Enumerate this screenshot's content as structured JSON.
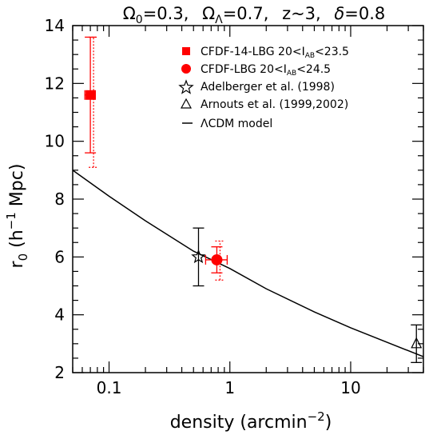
{
  "chart_data": {
    "type": "scatter",
    "title_parts": {
      "omega0_symbol": "Ω",
      "omega0_sub": "0",
      "omega0_value": "=0.3,",
      "omegaL_symbol": "Ω",
      "omegaL_sub": "Λ",
      "omegaL_value": "=0.7,",
      "z_text": "z~3,",
      "delta_symbol": "δ",
      "delta_value": "=0.8"
    },
    "xlabel": "density (arcmin",
    "xlabel_sup": "−2",
    "xlabel_close": ")",
    "ylabel": {
      "r": "r",
      "sub": "0",
      "open": " (h",
      "sup": "−1",
      "close": " Mpc)"
    },
    "x_scale": "log",
    "xlim": [
      0.05,
      40
    ],
    "ylim": [
      2,
      14
    ],
    "x_ticks": [
      {
        "value": 0.1,
        "label": "0.1"
      },
      {
        "value": 1,
        "label": "1"
      },
      {
        "value": 10,
        "label": "10"
      }
    ],
    "y_ticks": [
      {
        "value": 2,
        "label": "2"
      },
      {
        "value": 4,
        "label": "4"
      },
      {
        "value": 6,
        "label": "6"
      },
      {
        "value": 8,
        "label": "8"
      },
      {
        "value": 10,
        "label": "10"
      },
      {
        "value": 12,
        "label": "12"
      },
      {
        "value": 14,
        "label": "14"
      }
    ],
    "series": [
      {
        "name": "CFDF-14-LBG 20<I",
        "name_sub": "AB",
        "name_tail": "<23.5",
        "marker": "square",
        "color": "#ff0000",
        "points": [
          {
            "x": 0.07,
            "y": 11.6,
            "xerr": [
              0.063,
              0.077
            ],
            "yerr": [
              9.6,
              13.6
            ],
            "yerr_dotted": [
              9.1,
              13.6
            ]
          }
        ]
      },
      {
        "name": "CFDF-LBG 20<I",
        "name_sub": "AB",
        "name_tail": "<24.5",
        "marker": "circle",
        "color": "#ff0000",
        "points": [
          {
            "x": 0.78,
            "y": 5.9,
            "xerr": [
              0.63,
              0.95
            ],
            "yerr": [
              5.45,
              6.35
            ],
            "yerr_dotted": [
              5.2,
              6.55
            ]
          }
        ]
      },
      {
        "name": "Adelberger et al. (1998)",
        "marker": "star",
        "color": "#000000",
        "points": [
          {
            "x": 0.55,
            "y": 6.0,
            "yerr": [
              5.0,
              7.0
            ]
          }
        ]
      },
      {
        "name": "Arnouts et al. (1999,2002)",
        "marker": "triangle",
        "color": "#000000",
        "points": [
          {
            "x": 35,
            "y": 3.0,
            "yerr": [
              2.35,
              3.65
            ]
          }
        ]
      },
      {
        "name": "ΛCDM model",
        "marker": "line",
        "color": "#000000",
        "x": [
          0.05,
          0.1,
          0.2,
          0.5,
          1,
          2,
          5,
          10,
          20,
          40
        ],
        "y": [
          9.0,
          8.1,
          7.25,
          6.2,
          5.6,
          4.9,
          4.1,
          3.55,
          3.05,
          2.55
        ]
      }
    ],
    "legend_placement": "top-right",
    "grid": false
  }
}
